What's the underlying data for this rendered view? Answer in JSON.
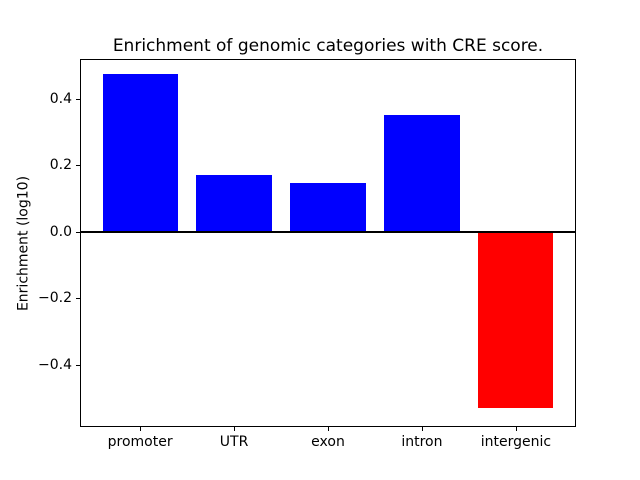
{
  "chart_data": {
    "type": "bar",
    "title": "Enrichment of genomic categories with CRE score.",
    "xlabel": "",
    "ylabel": "Enrichment (log10)",
    "categories": [
      "promoter",
      "UTR",
      "exon",
      "intron",
      "intergenic"
    ],
    "values": [
      0.475,
      0.172,
      0.147,
      0.351,
      -0.532
    ],
    "bar_colors": [
      "#0000ff",
      "#0000ff",
      "#0000ff",
      "#0000ff",
      "#ff0000"
    ],
    "positive_color": "#0000ff",
    "negative_color": "#ff0000",
    "ylim": [
      -0.588,
      0.52
    ],
    "yticks": [
      0.4,
      0.2,
      0.0,
      -0.2,
      -0.4
    ],
    "ytick_labels": [
      "0.4",
      "0.2",
      "0.0",
      "−0.2",
      "−0.4"
    ],
    "zero_line": true,
    "grid": false,
    "legend_position": "none",
    "background_color": "#ffffff",
    "axis_color": "#000000"
  }
}
